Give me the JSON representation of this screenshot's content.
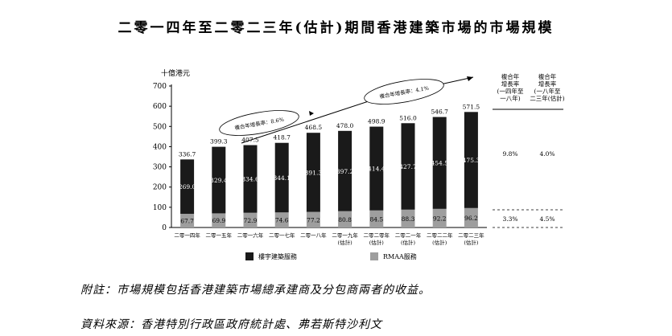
{
  "title": "二零一四年至二零二三年(估計)期間香港建築市場的市場規模",
  "unit_label": "十億港元",
  "chart_data": {
    "type": "bar",
    "stacked": true,
    "categories": [
      "二零一四年",
      "二零一五年",
      "二零一六年",
      "二零一七年",
      "二零一八年",
      "二零一九年\n(估計)",
      "二零二零年\n(估計)",
      "二零二一年\n(估計)",
      "二零二二年\n(估計)",
      "二零二三年\n(估計)"
    ],
    "category_labels": [
      [
        "二零一四年"
      ],
      [
        "二零一五年"
      ],
      [
        "二零一六年"
      ],
      [
        "二零一七年"
      ],
      [
        "二零一八年"
      ],
      [
        "二零一九年",
        "(估計)"
      ],
      [
        "二零二零年",
        "(估計)"
      ],
      [
        "二零二一年",
        "(估計)"
      ],
      [
        "二零二二年",
        "(估計)"
      ],
      [
        "二零二三年",
        "(估計)"
      ]
    ],
    "series": [
      {
        "name": "RMAA服務",
        "color": "#9e9e9e",
        "values": [
          67.7,
          69.9,
          72.9,
          74.6,
          77.2,
          80.8,
          84.5,
          88.3,
          92.2,
          96.2
        ]
      },
      {
        "name": "樓宇建築服務",
        "color": "#1a1a1a",
        "values": [
          269.0,
          329.4,
          334.6,
          344.1,
          391.3,
          397.2,
          414.4,
          427.7,
          454.5,
          475.3
        ]
      }
    ],
    "totals": [
      336.7,
      399.3,
      407.5,
      418.7,
      468.5,
      478.0,
      498.9,
      516.0,
      546.7,
      571.5
    ],
    "y_ticks": [
      0,
      100,
      200,
      300,
      400,
      500,
      600,
      700
    ],
    "ylim": [
      0,
      700
    ],
    "ylabel": "十億港元",
    "legend": [
      {
        "label": "樓宇建築服務",
        "color": "#1a1a1a"
      },
      {
        "label": "RMAA服務",
        "color": "#9e9e9e"
      }
    ],
    "annotations": [
      {
        "text": "複合年增長率：8.6%",
        "period": "二零一四年至二零一八年"
      },
      {
        "text": "複合年增長率：4.1%",
        "period": "二零一八年至二零二三年"
      }
    ],
    "cagr_table": {
      "headers": [
        [
          "複合年",
          "增長率",
          "(一四年至",
          "一八年)"
        ],
        [
          "複合年",
          "增長率",
          "(一八年至",
          "二三年(估計)"
        ]
      ],
      "rows": [
        {
          "segment": "樓宇建築服務",
          "values": [
            "9.8%",
            "4.0%"
          ]
        },
        {
          "segment": "RMAA服務",
          "values": [
            "3.3%",
            "4.5%"
          ]
        }
      ]
    }
  },
  "footnote": "附註：市場規模包括香港建築市場總承建商及分包商兩者的收益。",
  "source": "資料來源：香港特別行政區政府統計處、弗若斯特沙利文"
}
